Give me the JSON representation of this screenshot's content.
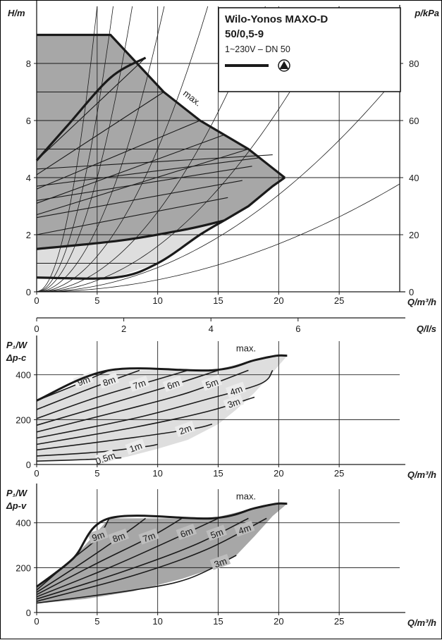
{
  "product": {
    "name": "Wilo-Yonos MAXO-D",
    "model": "50/0,5-9",
    "spec": "1~230V – DN 50",
    "curve_symbol_icon": "pump-triangle-icon"
  },
  "colors": {
    "line": "#1a1a1a",
    "fill_dark": "#a7a7a7",
    "fill_light": "#dedede",
    "grid": "#222222"
  },
  "chart_data": [
    {
      "id": "head",
      "type": "area",
      "ylabel": "H/m",
      "y2label": "p/kPa",
      "xlabel": "Q/m³/h",
      "xlim": [
        0,
        30
      ],
      "ylim": [
        0,
        10
      ],
      "y2lim": [
        0,
        100
      ],
      "x_ticks": [
        0,
        5,
        10,
        15,
        20,
        25
      ],
      "y_ticks": [
        0,
        2,
        4,
        6,
        8
      ],
      "y2_ticks": [
        0,
        20,
        40,
        60,
        80
      ],
      "grid": true,
      "annotation": "max.",
      "max_curve": [
        [
          0,
          9
        ],
        [
          6.1,
          9
        ],
        [
          10.5,
          7
        ],
        [
          13.5,
          6
        ],
        [
          17.5,
          5
        ],
        [
          20.5,
          4
        ]
      ],
      "dark_region": [
        [
          0,
          4.6
        ],
        [
          0,
          9
        ],
        [
          6.1,
          9
        ],
        [
          10.5,
          7
        ],
        [
          13.5,
          6
        ],
        [
          17.5,
          5
        ],
        [
          20.5,
          4
        ],
        [
          19.5,
          3.7
        ],
        [
          17.5,
          3.0
        ],
        [
          15.5,
          2.5
        ],
        [
          12.5,
          2.2
        ],
        [
          7,
          1.8
        ],
        [
          0,
          1.5
        ]
      ],
      "light_region": [
        [
          0,
          1.5
        ],
        [
          7,
          1.8
        ],
        [
          12.5,
          2.2
        ],
        [
          15.5,
          2.5
        ],
        [
          13.5,
          2.0
        ],
        [
          10,
          1.0
        ],
        [
          6.5,
          0.5
        ],
        [
          0,
          0.5
        ]
      ],
      "min_curve": [
        [
          0,
          0.5
        ],
        [
          6.5,
          0.5
        ],
        [
          10,
          1.0
        ],
        [
          13.5,
          2.0
        ],
        [
          15.5,
          2.5
        ]
      ],
      "heavy_setpoint_curves": [
        [
          [
            0,
            1.5
          ],
          [
            7,
            1.8
          ],
          [
            12.5,
            2.2
          ],
          [
            15.5,
            2.5
          ]
        ],
        [
          [
            0,
            4.6
          ],
          [
            2.5,
            5.8
          ],
          [
            6.1,
            7.5
          ],
          [
            9,
            8.2
          ]
        ]
      ],
      "setpoint_lines_dp_c": [
        1,
        2,
        3,
        4,
        5,
        6,
        7,
        8
      ],
      "setpoint_lines_dp_v": [
        [
          [
            0,
            2.0
          ],
          [
            15.8,
            3.3
          ]
        ],
        [
          [
            0,
            2.6
          ],
          [
            17,
            3.9
          ]
        ],
        [
          [
            0,
            3.2
          ],
          [
            17.8,
            4.4
          ]
        ],
        [
          [
            0,
            3.7
          ],
          [
            18.5,
            4.7
          ]
        ],
        [
          [
            0,
            4.3
          ],
          [
            19.5,
            4.8
          ]
        ]
      ],
      "system_curve_k": [
        0.4,
        0.25,
        0.16,
        0.09,
        0.05,
        0.028,
        0.016,
        0.0085,
        0.0042
      ]
    },
    {
      "id": "flow_ls",
      "type": "axis",
      "xlabel": "Q/l/s",
      "x_ticks": [
        0,
        2,
        4,
        6
      ],
      "xlim": [
        0,
        8.333
      ]
    },
    {
      "id": "power_dp_c",
      "type": "area",
      "ylabel": "P₁/W",
      "mode": "Δp-c",
      "xlabel": "Q/m³/h",
      "xlim": [
        0,
        30
      ],
      "ylim": [
        0,
        550
      ],
      "x_ticks": [
        0,
        5,
        10,
        15,
        20,
        25
      ],
      "y_ticks": [
        0,
        200,
        400
      ],
      "grid": true,
      "annotation": "max.",
      "envelope_top": [
        [
          0,
          285
        ],
        [
          6,
          420
        ],
        [
          14.5,
          420
        ],
        [
          18,
          465
        ],
        [
          19.8,
          485
        ],
        [
          20.7,
          485
        ]
      ],
      "region": [
        [
          0,
          20
        ],
        [
          0,
          285
        ],
        [
          6,
          420
        ],
        [
          14.5,
          420
        ],
        [
          18,
          465
        ],
        [
          19.8,
          485
        ],
        [
          20.7,
          485
        ],
        [
          19.5,
          410
        ],
        [
          18,
          320
        ],
        [
          16.5,
          245
        ],
        [
          15,
          180
        ],
        [
          12.5,
          110
        ],
        [
          10,
          70
        ],
        [
          7.5,
          35
        ],
        [
          6,
          20
        ]
      ],
      "curves": [
        {
          "name": "9m",
          "points": [
            [
              0,
              285
            ],
            [
              3,
              350
            ],
            [
              6,
              420
            ]
          ],
          "label_x": 3.9
        },
        {
          "name": "8m",
          "points": [
            [
              0,
              245
            ],
            [
              4,
              330
            ],
            [
              8.5,
              420
            ]
          ],
          "label_x": 6.0
        },
        {
          "name": "7m",
          "points": [
            [
              0,
              205
            ],
            [
              5,
              300
            ],
            [
              10,
              380
            ],
            [
              12.5,
              420
            ]
          ],
          "label_x": 8.5
        },
        {
          "name": "6m",
          "points": [
            [
              0,
              175
            ],
            [
              6,
              270
            ],
            [
              11,
              350
            ],
            [
              15,
              420
            ]
          ],
          "label_x": 11.3
        },
        {
          "name": "5m",
          "points": [
            [
              0,
              145
            ],
            [
              7,
              240
            ],
            [
              12.5,
              320
            ],
            [
              17.5,
              420
            ]
          ],
          "label_x": 14.5
        },
        {
          "name": "4m",
          "points": [
            [
              0,
              118
            ],
            [
              8,
              205
            ],
            [
              14,
              290
            ],
            [
              18.5,
              360
            ],
            [
              19.5,
              420
            ]
          ],
          "label_x": 16.5
        },
        {
          "name": "3m",
          "points": [
            [
              0,
              90
            ],
            [
              8,
              165
            ],
            [
              14,
              235
            ],
            [
              18,
              300
            ]
          ],
          "label_x": 16.3
        },
        {
          "name": "2m",
          "points": [
            [
              0,
              65
            ],
            [
              8,
              120
            ],
            [
              13,
              160
            ],
            [
              14.5,
              180
            ]
          ],
          "label_x": 12.3
        },
        {
          "name": "1m",
          "points": [
            [
              0,
              38
            ],
            [
              5,
              55
            ],
            [
              9,
              80
            ],
            [
              10,
              90
            ]
          ],
          "label_x": 8.2
        },
        {
          "name": "0.5m",
          "points": [
            [
              0,
              15
            ],
            [
              4,
              22
            ],
            [
              7,
              30
            ]
          ],
          "label_x": 5.7
        }
      ]
    },
    {
      "id": "power_dp_v",
      "type": "area",
      "ylabel": "P₁/W",
      "mode": "Δp-v",
      "xlabel": "Q/m³/h",
      "xlim": [
        0,
        30
      ],
      "ylim": [
        0,
        550
      ],
      "x_ticks": [
        0,
        5,
        10,
        15,
        20,
        25
      ],
      "y_ticks": [
        0,
        200,
        400
      ],
      "grid": true,
      "annotation": "max.",
      "envelope_top": [
        [
          0,
          115
        ],
        [
          3,
          240
        ],
        [
          6,
          420
        ],
        [
          14.5,
          420
        ],
        [
          18,
          465
        ],
        [
          19.8,
          485
        ],
        [
          20.7,
          485
        ]
      ],
      "region": [
        [
          0,
          40
        ],
        [
          0,
          115
        ],
        [
          3,
          240
        ],
        [
          6,
          420
        ],
        [
          14.5,
          420
        ],
        [
          18,
          465
        ],
        [
          19.8,
          485
        ],
        [
          20.7,
          485
        ],
        [
          19.5,
          430
        ],
        [
          18,
          340
        ],
        [
          16.5,
          255
        ],
        [
          14.5,
          195
        ],
        [
          12,
          150
        ],
        [
          8,
          95
        ],
        [
          4,
          60
        ]
      ],
      "curves": [
        {
          "name": "9m",
          "points": [
            [
              0,
              100
            ],
            [
              3,
              240
            ],
            [
              5,
              330
            ],
            [
              6,
              420
            ]
          ],
          "label_x": 5.1
        },
        {
          "name": "8m",
          "points": [
            [
              0,
              90
            ],
            [
              4,
              230
            ],
            [
              7.5,
              360
            ],
            [
              9,
              420
            ]
          ],
          "label_x": 6.8
        },
        {
          "name": "7m",
          "points": [
            [
              0,
              80
            ],
            [
              5,
              220
            ],
            [
              9.5,
              340
            ],
            [
              12,
              420
            ]
          ],
          "label_x": 9.3
        },
        {
          "name": "6m",
          "points": [
            [
              0,
              70
            ],
            [
              6,
              200
            ],
            [
              11,
              320
            ],
            [
              15,
              420
            ]
          ],
          "label_x": 12.4
        },
        {
          "name": "5m",
          "points": [
            [
              0,
              60
            ],
            [
              7,
              180
            ],
            [
              13,
              300
            ],
            [
              17.5,
              420
            ]
          ],
          "label_x": 14.9
        },
        {
          "name": "4m",
          "points": [
            [
              0,
              50
            ],
            [
              8,
              165
            ],
            [
              14,
              280
            ],
            [
              19,
              420
            ]
          ],
          "label_x": 17.2
        },
        {
          "name": "3m",
          "points": [
            [
              0,
              42
            ],
            [
              8,
              100
            ],
            [
              12.5,
              150
            ],
            [
              16.5,
              255
            ]
          ],
          "label_x": 15.2
        }
      ]
    }
  ]
}
